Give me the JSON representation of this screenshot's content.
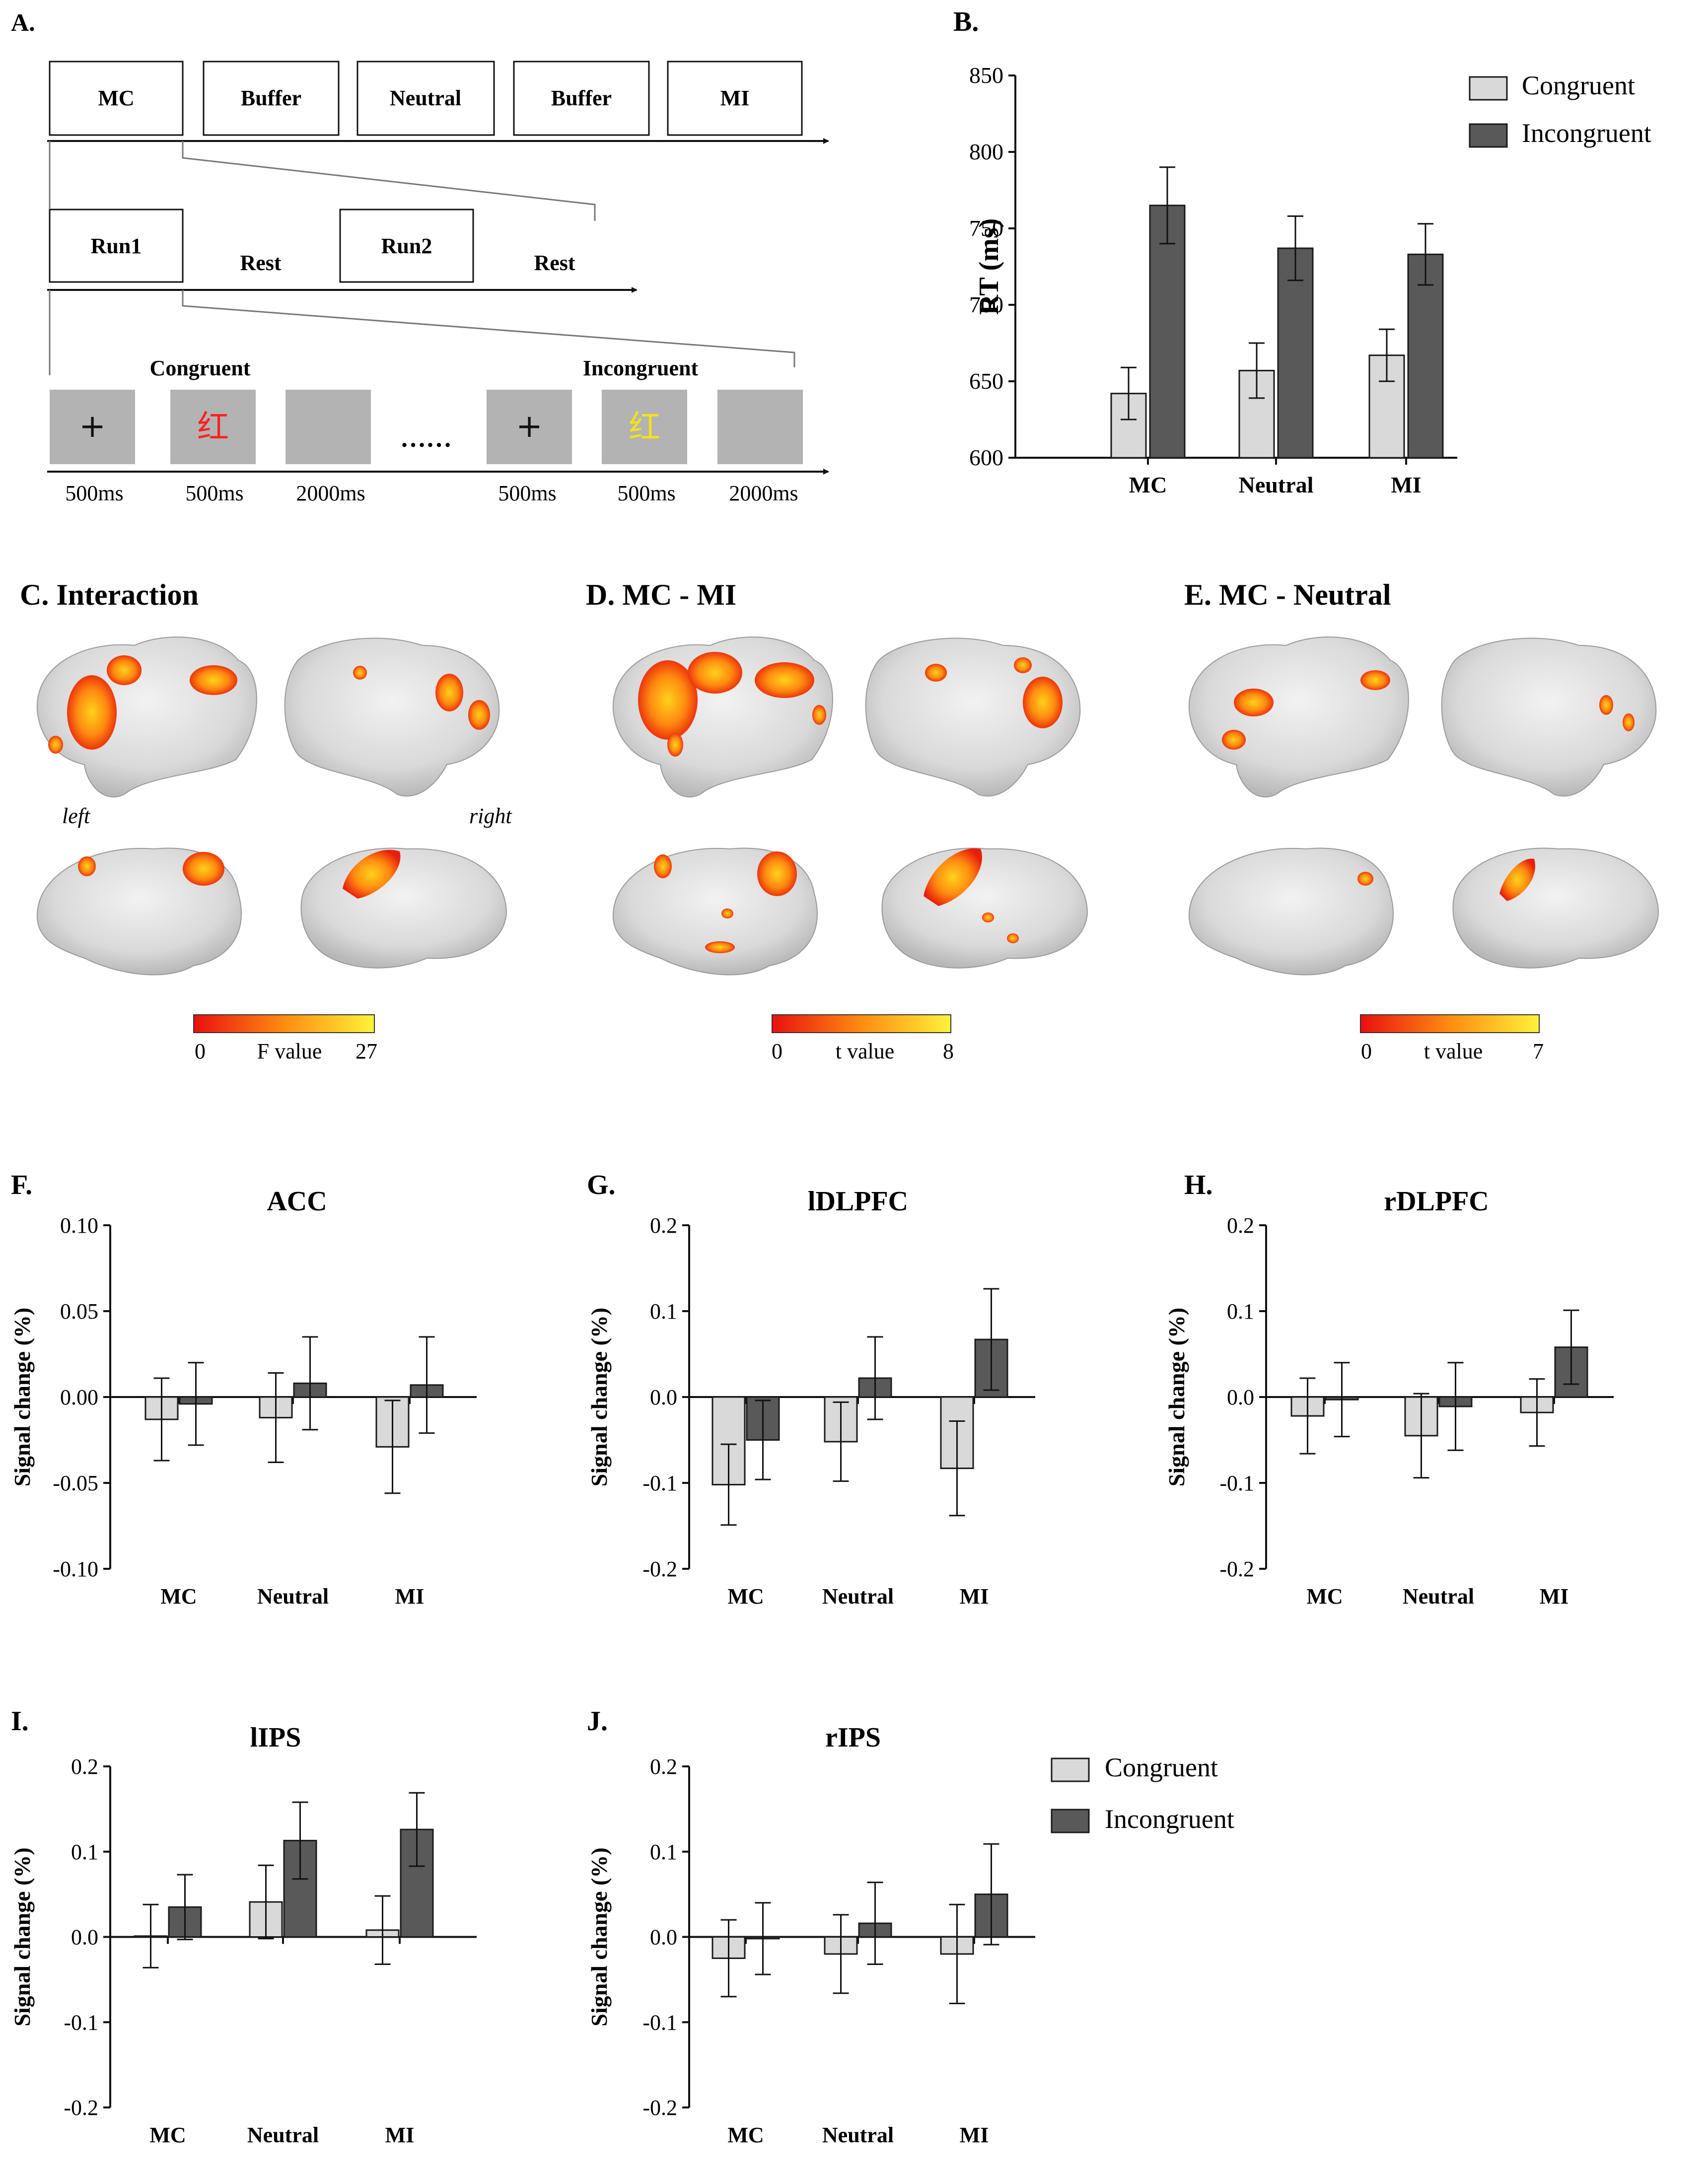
{
  "colors": {
    "congruent": "#d9d9d9",
    "incongruent": "#595959",
    "edge": "#1a1a1a",
    "stim_bg": "#b3b3b3",
    "red": "#ff2020",
    "yellow": "#f5e21a"
  },
  "panelA": {
    "label": "A.",
    "blocks": [
      "MC",
      "Buffer",
      "Neutral",
      "Buffer",
      "MI"
    ],
    "runs": [
      "Run1",
      "Rest",
      "Run2",
      "Rest"
    ],
    "trial_headers": [
      "Congruent",
      "Incongruent"
    ],
    "stim_symbols": [
      "+",
      "红",
      "+",
      "红"
    ],
    "ellipsis": "……",
    "timings": [
      "500ms",
      "500ms",
      "2000ms",
      "500ms",
      "500ms",
      "2000ms"
    ]
  },
  "brain_panels": [
    {
      "label": "C. Interaction",
      "cb_min": "0",
      "cb_label": "F value",
      "cb_max": "27"
    },
    {
      "label": "D. MC - MI",
      "cb_min": "0",
      "cb_label": "t value",
      "cb_max": "8"
    },
    {
      "label": "E. MC - Neutral",
      "cb_min": "0",
      "cb_label": "t value",
      "cb_max": "7"
    }
  ],
  "brain_side_labels": {
    "left": "left",
    "right": "right"
  },
  "legend": {
    "congruent": "Congruent",
    "incongruent": "Incongruent"
  },
  "chart_data": [
    {
      "id": "B",
      "label": "B.",
      "type": "bar",
      "title": "",
      "ylabel": "RT (ms)",
      "categories": [
        "MC",
        "Neutral",
        "MI"
      ],
      "ylim": [
        600,
        850
      ],
      "yticks": [
        600,
        650,
        700,
        750,
        800,
        850
      ],
      "series": [
        {
          "name": "Congruent",
          "values": [
            642,
            657,
            667
          ],
          "errors": [
            17,
            18,
            17
          ]
        },
        {
          "name": "Incongruent",
          "values": [
            765,
            737,
            733
          ],
          "errors": [
            25,
            21,
            20
          ]
        }
      ]
    },
    {
      "id": "F",
      "label": "F.",
      "type": "bar",
      "title": "ACC",
      "ylabel": "Signal change (%)",
      "categories": [
        "MC",
        "Neutral",
        "MI"
      ],
      "ylim": [
        -0.1,
        0.1
      ],
      "yticks": [
        "-0.10",
        "-0.05",
        "0.00",
        "0.05",
        "0.10"
      ],
      "series": [
        {
          "name": "Congruent",
          "values": [
            -0.013,
            -0.012,
            -0.029
          ],
          "errors": [
            0.024,
            0.026,
            0.027
          ]
        },
        {
          "name": "Incongruent",
          "values": [
            -0.004,
            0.008,
            0.007
          ],
          "errors": [
            0.024,
            0.027,
            0.028
          ]
        }
      ]
    },
    {
      "id": "G",
      "label": "G.",
      "type": "bar",
      "title": "lDLPFC",
      "ylabel": "Signal change (%)",
      "categories": [
        "MC",
        "Neutral",
        "MI"
      ],
      "ylim": [
        -0.2,
        0.2
      ],
      "yticks": [
        "-0.2",
        "-0.1",
        "0.0",
        "0.1",
        "0.2"
      ],
      "series": [
        {
          "name": "Congruent",
          "values": [
            -0.102,
            -0.052,
            -0.083
          ],
          "errors": [
            0.047,
            0.046,
            0.055
          ]
        },
        {
          "name": "Incongruent",
          "values": [
            -0.05,
            0.022,
            0.067
          ],
          "errors": [
            0.046,
            0.048,
            0.059
          ]
        }
      ]
    },
    {
      "id": "H",
      "label": "H.",
      "type": "bar",
      "title": "rDLPFC",
      "ylabel": "Signal change (%)",
      "categories": [
        "MC",
        "Neutral",
        "MI"
      ],
      "ylim": [
        -0.2,
        0.2
      ],
      "yticks": [
        "-0.2",
        "-0.1",
        "0.0",
        "0.1",
        "0.2"
      ],
      "series": [
        {
          "name": "Congruent",
          "values": [
            -0.022,
            -0.045,
            -0.018
          ],
          "errors": [
            0.044,
            0.049,
            0.039
          ]
        },
        {
          "name": "Incongruent",
          "values": [
            -0.003,
            -0.011,
            0.058
          ],
          "errors": [
            0.043,
            0.051,
            0.043
          ]
        }
      ]
    },
    {
      "id": "I",
      "label": "I.",
      "type": "bar",
      "title": "lIPS",
      "ylabel": "Signal change (%)",
      "categories": [
        "MC",
        "Neutral",
        "MI"
      ],
      "ylim": [
        -0.2,
        0.2
      ],
      "yticks": [
        "-0.2",
        "-0.1",
        "0.0",
        "0.1",
        "0.2"
      ],
      "series": [
        {
          "name": "Congruent",
          "values": [
            0.001,
            0.041,
            0.008
          ],
          "errors": [
            0.037,
            0.043,
            0.04
          ]
        },
        {
          "name": "Incongruent",
          "values": [
            0.035,
            0.113,
            0.126
          ],
          "errors": [
            0.038,
            0.045,
            0.043
          ]
        }
      ]
    },
    {
      "id": "J",
      "label": "J.",
      "type": "bar",
      "title": "rIPS",
      "ylabel": "Signal change (%)",
      "categories": [
        "MC",
        "Neutral",
        "MI"
      ],
      "ylim": [
        -0.2,
        0.2
      ],
      "yticks": [
        "-0.2",
        "-0.1",
        "0.0",
        "0.1",
        "0.2"
      ],
      "series": [
        {
          "name": "Congruent",
          "values": [
            -0.025,
            -0.02,
            -0.02
          ],
          "errors": [
            0.045,
            0.046,
            0.058
          ]
        },
        {
          "name": "Incongruent",
          "values": [
            -0.002,
            0.016,
            0.05
          ],
          "errors": [
            0.042,
            0.048,
            0.059
          ]
        }
      ]
    }
  ]
}
